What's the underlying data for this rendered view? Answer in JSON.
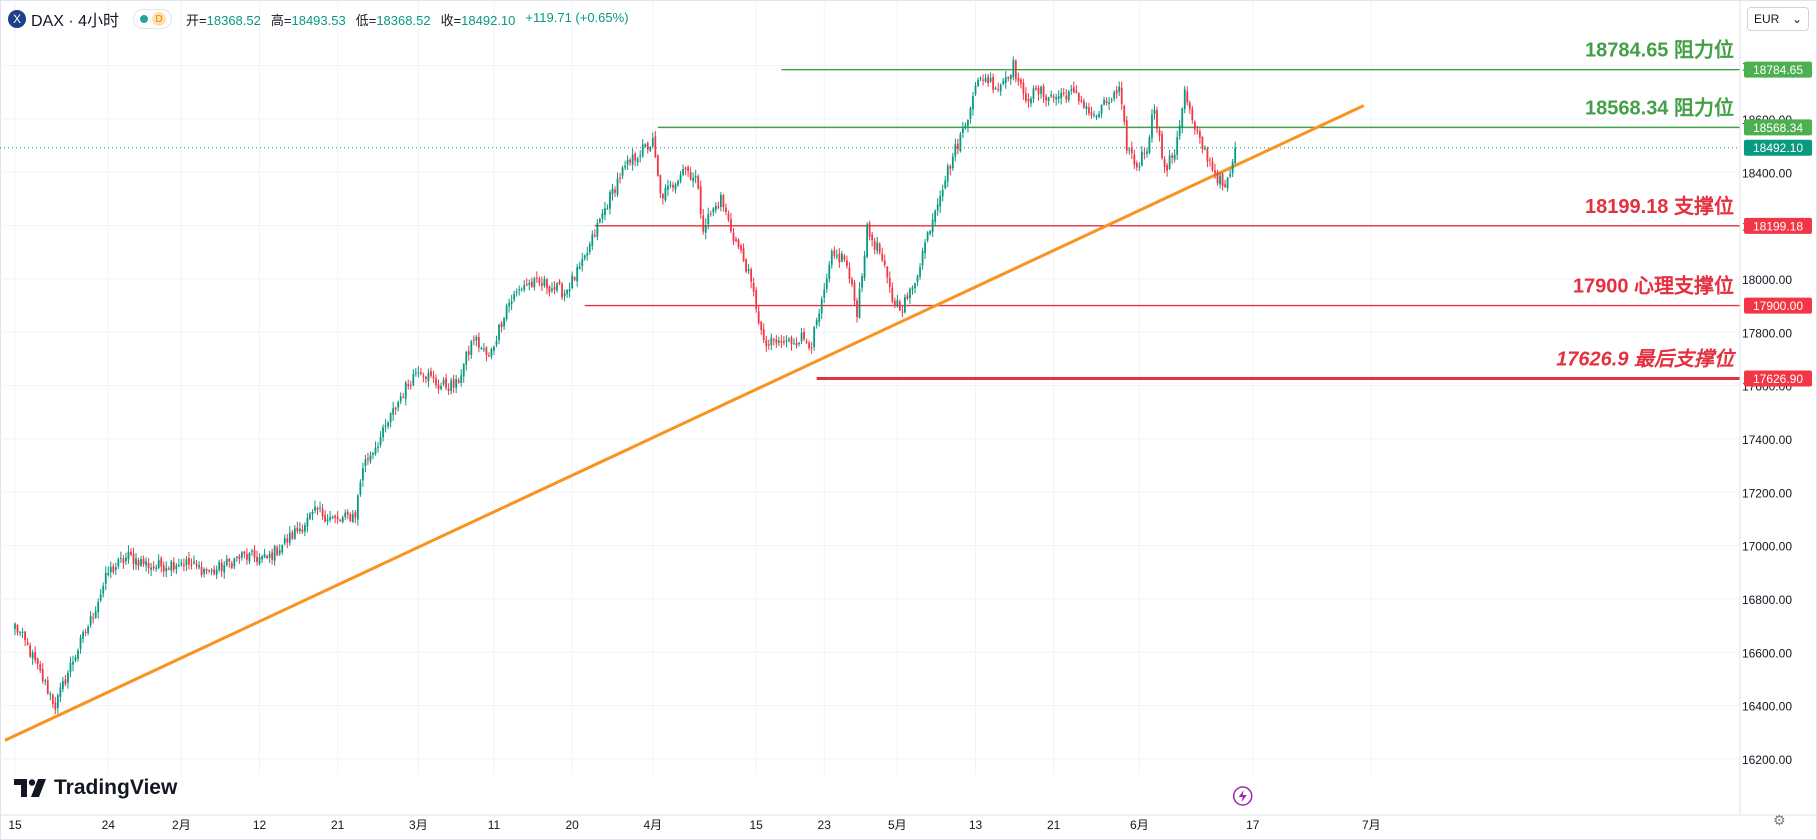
{
  "header": {
    "symbol_icon": "xetra-icon",
    "symbol_icon_glyph": "X",
    "symbol": "DAX · 4小时",
    "status_badge": "D",
    "ohlc": [
      {
        "key": "开",
        "value": "18368.52"
      },
      {
        "key": "高",
        "value": "18493.53"
      },
      {
        "key": "低",
        "value": "18368.52"
      },
      {
        "key": "收",
        "value": "18492.10"
      },
      {
        "key": "",
        "value": "+119.71 (+0.65%)"
      }
    ]
  },
  "currency": "EUR",
  "logo_text": "TradingView",
  "chart_data": {
    "type": "candlestick",
    "title": "",
    "ylim": [
      16140,
      18990
    ],
    "y_ticks": [
      16200,
      16400,
      16600,
      16800,
      17000,
      17200,
      17400,
      17600,
      17800,
      18000,
      18200,
      18400,
      18600,
      18800
    ],
    "y_tick_labels": [
      "16200.00",
      "16400.00",
      "16600.00",
      "16800.00",
      "17000.00",
      "17200.00",
      "17400.00",
      "17600.00",
      "17800.00",
      "18000.00",
      "18200.00",
      "18400.00",
      "18600.00",
      "18800.00"
    ],
    "x_tick_labels": [
      "15",
      "24",
      "2月",
      "12",
      "21",
      "3月",
      "11",
      "20",
      "4月",
      "15",
      "23",
      "5月",
      "13",
      "21",
      "6月",
      "17",
      "7月"
    ],
    "x_tick_index": [
      0,
      37,
      66,
      97,
      128,
      160,
      190,
      221,
      253,
      294,
      321,
      350,
      381,
      412,
      446,
      491,
      538
    ],
    "n_bars": 485,
    "up_color": "#089981",
    "down_color": "#f23645",
    "anchors": [
      [
        0,
        16700
      ],
      [
        5,
        16620
      ],
      [
        12,
        16480
      ],
      [
        16,
        16400
      ],
      [
        22,
        16550
      ],
      [
        30,
        16720
      ],
      [
        37,
        16900
      ],
      [
        45,
        16960
      ],
      [
        55,
        16920
      ],
      [
        66,
        16940
      ],
      [
        78,
        16900
      ],
      [
        90,
        16960
      ],
      [
        100,
        16950
      ],
      [
        110,
        17040
      ],
      [
        120,
        17130
      ],
      [
        128,
        17090
      ],
      [
        135,
        17120
      ],
      [
        138,
        17300
      ],
      [
        146,
        17420
      ],
      [
        153,
        17560
      ],
      [
        160,
        17670
      ],
      [
        168,
        17600
      ],
      [
        175,
        17600
      ],
      [
        182,
        17780
      ],
      [
        188,
        17700
      ],
      [
        195,
        17900
      ],
      [
        202,
        17980
      ],
      [
        210,
        17980
      ],
      [
        218,
        17950
      ],
      [
        225,
        18050
      ],
      [
        232,
        18220
      ],
      [
        240,
        18390
      ],
      [
        247,
        18470
      ],
      [
        253,
        18510
      ],
      [
        256,
        18310
      ],
      [
        260,
        18340
      ],
      [
        265,
        18420
      ],
      [
        270,
        18380
      ],
      [
        273,
        18200
      ],
      [
        280,
        18300
      ],
      [
        285,
        18160
      ],
      [
        290,
        18050
      ],
      [
        294,
        17900
      ],
      [
        297,
        17750
      ],
      [
        301,
        17760
      ],
      [
        306,
        17760
      ],
      [
        312,
        17780
      ],
      [
        316,
        17760
      ],
      [
        320,
        17900
      ],
      [
        324,
        18080
      ],
      [
        329,
        18080
      ],
      [
        334,
        17880
      ],
      [
        338,
        18180
      ],
      [
        343,
        18100
      ],
      [
        348,
        17920
      ],
      [
        352,
        17900
      ],
      [
        356,
        17960
      ],
      [
        360,
        18100
      ],
      [
        366,
        18300
      ],
      [
        372,
        18460
      ],
      [
        377,
        18580
      ],
      [
        380,
        18700
      ],
      [
        384,
        18760
      ],
      [
        390,
        18720
      ],
      [
        396,
        18800
      ],
      [
        400,
        18680
      ],
      [
        406,
        18700
      ],
      [
        412,
        18680
      ],
      [
        418,
        18700
      ],
      [
        424,
        18660
      ],
      [
        428,
        18600
      ],
      [
        433,
        18660
      ],
      [
        438,
        18700
      ],
      [
        441,
        18500
      ],
      [
        445,
        18420
      ],
      [
        449,
        18500
      ],
      [
        452,
        18650
      ],
      [
        456,
        18400
      ],
      [
        460,
        18480
      ],
      [
        464,
        18700
      ],
      [
        468,
        18550
      ],
      [
        472,
        18480
      ],
      [
        476,
        18400
      ],
      [
        480,
        18330
      ],
      [
        485,
        18492.1
      ]
    ],
    "last_price": 18492.1,
    "price_axis_labels": [
      {
        "text": "18784.65",
        "bg": "#4caf50"
      },
      {
        "text": "18568.34",
        "bg": "#4caf50"
      },
      {
        "text": "18492.10",
        "bg": "#089981"
      },
      {
        "text": "18199.18",
        "bg": "#f23645"
      },
      {
        "text": "17900.00",
        "bg": "#f23645"
      },
      {
        "text": "17626.90",
        "bg": "#f23645"
      }
    ],
    "levels": [
      {
        "value": 18784.65,
        "label": "18784.65 阻力位",
        "color": "#43a047",
        "italic": false,
        "start_index": 304
      },
      {
        "value": 18568.34,
        "label": "18568.34 阻力位",
        "color": "#43a047",
        "italic": false,
        "start_index": 255
      },
      {
        "value": 18199.18,
        "label": "18199.18 支撑位",
        "color": "#e5303f",
        "italic": false,
        "start_index": 230
      },
      {
        "value": 17900.0,
        "label": "17900 心理支撑位",
        "color": "#e5303f",
        "italic": false,
        "start_index": 226
      },
      {
        "value": 17626.9,
        "label": "17626.9 最后支撑位",
        "color": "#e5303f",
        "italic": true,
        "start_index": 318
      }
    ],
    "trendline": {
      "color": "#f7931e",
      "points": [
        [
          -4,
          16270
        ],
        [
          535,
          18650
        ]
      ]
    }
  }
}
